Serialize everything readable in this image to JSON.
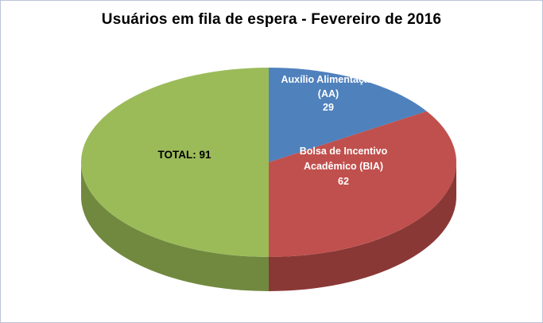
{
  "chart_data": {
    "type": "pie",
    "effect": "3d",
    "title": "Usuários em fila de espera - Fevereiro de 2016",
    "legend": "none",
    "start_angle_deg": -90,
    "direction": "clockwise",
    "background_color": "#FFFFFF",
    "border_color": "#BCC4D6",
    "title_color": "#000000",
    "slice_label_color": "#FFFFFF",
    "total_label_color": "#000000",
    "total_label": "TOTAL: 91",
    "slices": [
      {
        "name": "Auxílio Alimentação (AA)",
        "value": 29,
        "color": "#4F81BD",
        "side_color": "#335677",
        "label_lines": [
          "Auxílio Alimentação",
          "(AA)",
          "29"
        ]
      },
      {
        "name": "Bolsa de Incentivo Acadêmico (BIA)",
        "value": 62,
        "color": "#C0504D",
        "side_color": "#8A3836",
        "label_lines": [
          "Bolsa de Incentivo",
          "Acadêmico (BIA)",
          "62"
        ]
      },
      {
        "name": "TOTAL",
        "value": 91,
        "color": "#9BBB59",
        "side_color": "#71893F",
        "label_lines": [
          "TOTAL: 91"
        ]
      }
    ]
  }
}
